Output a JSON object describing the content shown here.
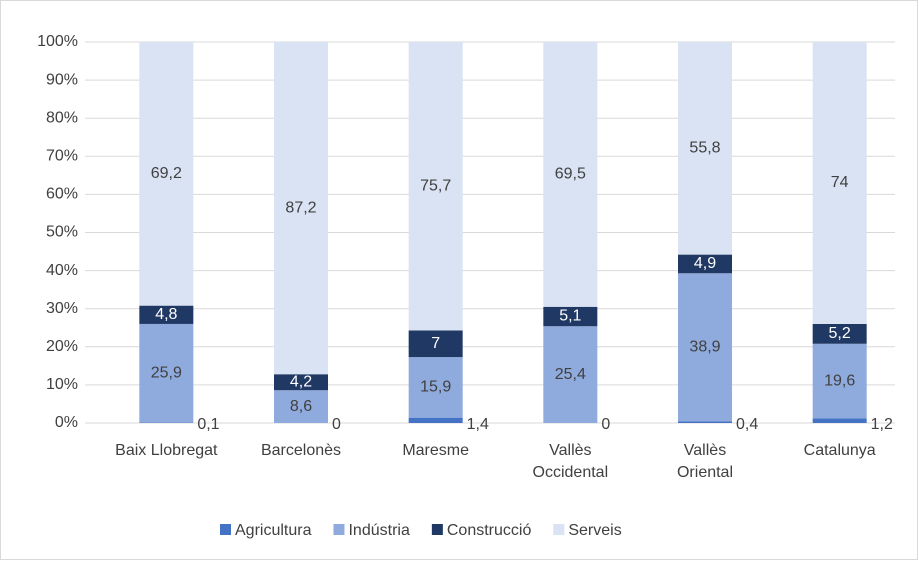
{
  "chart_data": {
    "type": "stacked_bar",
    "categories": [
      "Baix Llobregat",
      "Barcelonès",
      "Maresme",
      "Vallès\nOccidental",
      "Vallès\nOriental",
      "Catalunya"
    ],
    "series": [
      {
        "name": "Agricultura",
        "color": "#4472c4",
        "values": [
          0.1,
          0,
          1.4,
          0,
          0.4,
          1.2
        ],
        "value_labels": [
          "0,1",
          "0",
          "1,4",
          "0",
          "0,4",
          "1,2"
        ]
      },
      {
        "name": "Indústria",
        "color": "#8faadc",
        "values": [
          25.9,
          8.6,
          15.9,
          25.4,
          38.9,
          19.6
        ],
        "value_labels": [
          "25,9",
          "8,6",
          "15,9",
          "25,4",
          "38,9",
          "19,6"
        ]
      },
      {
        "name": "Construcció",
        "color": "#203864",
        "values": [
          4.8,
          4.2,
          7,
          5.1,
          4.9,
          5.2
        ],
        "value_labels": [
          "4,8",
          "4,2",
          "7",
          "5,1",
          "4,9",
          "5,2"
        ]
      },
      {
        "name": "Serveis",
        "color": "#dae3f3",
        "values": [
          69.2,
          87.2,
          75.7,
          69.5,
          55.8,
          74
        ],
        "value_labels": [
          "69,2",
          "87,2",
          "75,7",
          "69,5",
          "55,8",
          "74"
        ]
      }
    ],
    "ylim": [
      0,
      100
    ],
    "yticks": [
      {
        "value": 0,
        "label": "0%"
      },
      {
        "value": 10,
        "label": "10%"
      },
      {
        "value": 20,
        "label": "20%"
      },
      {
        "value": 30,
        "label": "30%"
      },
      {
        "value": 40,
        "label": "40%"
      },
      {
        "value": 50,
        "label": "50%"
      },
      {
        "value": 60,
        "label": "60%"
      },
      {
        "value": 70,
        "label": "70%"
      },
      {
        "value": 80,
        "label": "80%"
      },
      {
        "value": 90,
        "label": "90%"
      },
      {
        "value": 100,
        "label": "100%"
      }
    ],
    "grid": true,
    "legend": "bottom"
  }
}
